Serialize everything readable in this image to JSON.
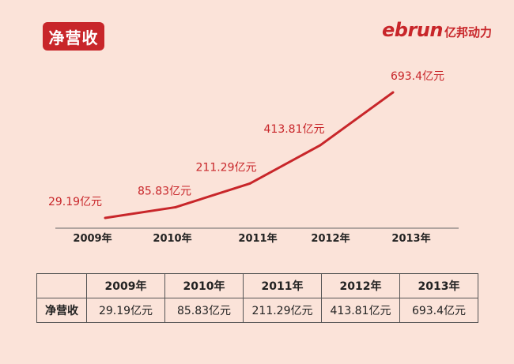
{
  "title": "净营收",
  "logo": {
    "latin": "ebrun",
    "cjk": "亿邦动力"
  },
  "chart_data": {
    "type": "line",
    "categories": [
      "2009年",
      "2010年",
      "2011年",
      "2012年",
      "2013年"
    ],
    "values": [
      29.19,
      85.83,
      211.29,
      413.81,
      693.4
    ],
    "data_labels": [
      "29.19亿元",
      "85.83亿元",
      "211.29亿元",
      "413.81亿元",
      "693.4亿元"
    ],
    "series_color": "#c8262a",
    "ylim": [
      0,
      700
    ],
    "grid": false
  },
  "table": {
    "corner": "",
    "row_label": "净营收",
    "headers": [
      "2009年",
      "2010年",
      "2011年",
      "2012年",
      "2013年"
    ],
    "cells": [
      "29.19亿元",
      "85.83亿元",
      "211.29亿元",
      "413.81亿元",
      "693.4亿元"
    ]
  }
}
